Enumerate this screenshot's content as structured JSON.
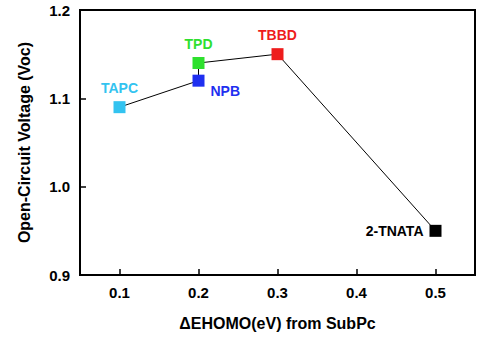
{
  "chart_data": {
    "type": "line",
    "marker": "square",
    "grid": false,
    "x_label": "ΔEHOMO(eV) from SubPc",
    "y_label": "Open-Circuit Voltage (Voc)",
    "x": [
      0.1,
      0.2,
      0.2,
      0.3,
      0.5
    ],
    "values": [
      1.09,
      1.12,
      1.14,
      1.15,
      0.95
    ],
    "point_labels": [
      "TAPC",
      "NPB",
      "TPD",
      "TBBD",
      "2-TNATA"
    ],
    "colors": [
      "#33c3f0",
      "#1f2ff0",
      "#2ee02e",
      "#ee1c1c",
      "#000000"
    ],
    "color": "#000000",
    "xlim": [
      0.05,
      0.55
    ],
    "xticks": [
      0.1,
      0.2,
      0.3,
      0.4,
      0.5
    ],
    "ylim": [
      0.9,
      1.2
    ],
    "yticks": [
      0.9,
      {
        "value": 1,
        "label": "1.0"
      },
      1.1,
      1.2
    ]
  }
}
